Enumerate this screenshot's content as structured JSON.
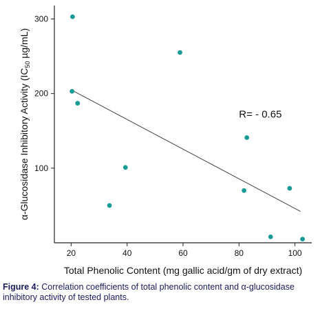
{
  "chart_data": {
    "type": "scatter",
    "title": "",
    "xlabel": "Total Phenolic Content  (mg gallic acid/gm of dry extract)",
    "ylabel": "α-Glucosidase Inhibitory Activity (IC50 µg/mL)",
    "ylabel_parts": {
      "main": "α-Glucosidase Inhibitory Activity (IC",
      "sub": "50",
      "unit": " µg/mL)"
    },
    "xlim": [
      14,
      106
    ],
    "ylim": [
      0,
      318
    ],
    "xticks": [
      20,
      40,
      60,
      80,
      100
    ],
    "yticks": [
      100,
      200,
      300
    ],
    "grid": false,
    "points": [
      {
        "x": 20.5,
        "y": 303
      },
      {
        "x": 20.3,
        "y": 203
      },
      {
        "x": 22.3,
        "y": 187
      },
      {
        "x": 33.7,
        "y": 50
      },
      {
        "x": 39.4,
        "y": 101
      },
      {
        "x": 58.9,
        "y": 255
      },
      {
        "x": 81.8,
        "y": 70
      },
      {
        "x": 82.8,
        "y": 141
      },
      {
        "x": 91.3,
        "y": 8
      },
      {
        "x": 98.1,
        "y": 73
      },
      {
        "x": 102.7,
        "y": 5
      }
    ],
    "trendline": {
      "x": [
        20,
        102
      ],
      "y": [
        205,
        42
      ]
    },
    "annotation": "R= - 0.65",
    "annotation_at": {
      "x": 80,
      "y": 168
    },
    "point_color": "#1a9a94",
    "line_color": "#404040"
  },
  "caption": {
    "label": "Figure 4:",
    "text": " Correlation coefficients of total phenolic content and α-glucosidase inhibitory activity of tested plants."
  }
}
